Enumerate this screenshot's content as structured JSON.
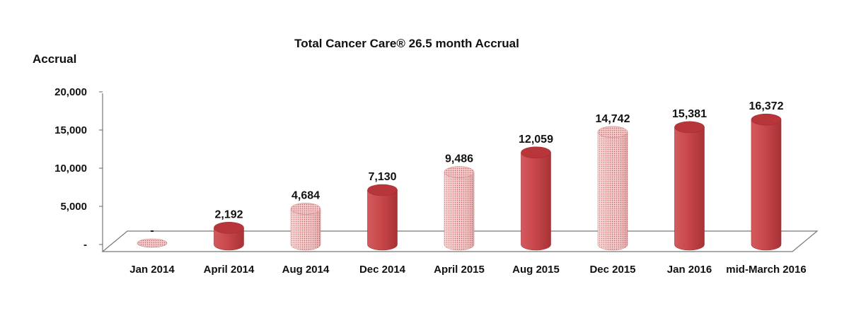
{
  "chart_data": {
    "type": "bar",
    "title": "Total Cancer Care® 26.5 month Accrual",
    "ylabel": "Accrual",
    "xlabel": "",
    "ylim": [
      0,
      20000
    ],
    "yticks": [
      0,
      5000,
      10000,
      15000,
      20000
    ],
    "ytick_labels": [
      "-",
      "5,000",
      "10,000",
      "15,000",
      "20,000"
    ],
    "categories": [
      "Jan 2014",
      "April 2014",
      "Aug 2014",
      "Dec 2014",
      "April 2015",
      "Aug 2015",
      "Dec 2015",
      "Jan 2016",
      "mid-March 2016"
    ],
    "values": [
      0,
      2192,
      4684,
      7130,
      9486,
      12059,
      14742,
      15381,
      16372
    ],
    "value_labels": [
      "-",
      "2,192",
      "4,684",
      "7,130",
      "9,486",
      "12,059",
      "14,742",
      "15,381",
      "16,372"
    ],
    "bar_styles": [
      "dotted",
      "solid",
      "dotted",
      "solid",
      "dotted",
      "solid",
      "dotted",
      "solid",
      "solid"
    ],
    "grid": false,
    "legend": "none"
  },
  "colors": {
    "solid_fill": "#c9474b",
    "solid_top": "#b8353a",
    "dotted_fill": "#f0c0c0",
    "dot_color": "#c46060",
    "floor": "#ffffff",
    "axis": "#666666"
  }
}
